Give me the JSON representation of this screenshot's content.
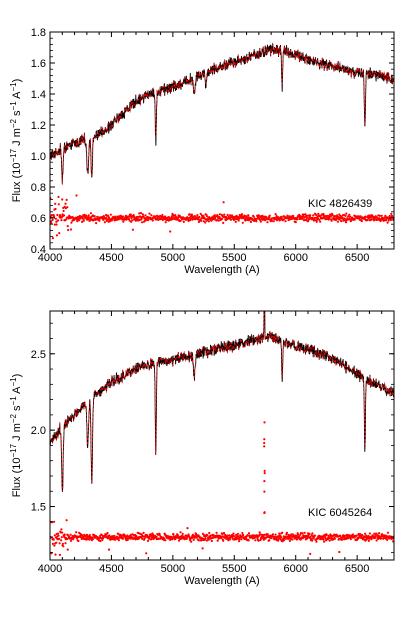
{
  "colors": {
    "model": "#000000",
    "residual": "#ff0000",
    "frame": "#000000"
  },
  "chart_data": [
    {
      "type": "line",
      "annotation": "KIC 4826439",
      "xlabel": "Wavelength (A)",
      "ylabel_parts": {
        "base": "Flux (10",
        "e1": "−17",
        "mid1": " J m",
        "e2": "−2",
        "mid2": " s",
        "e3": "−1",
        "mid3": " A",
        "e4": "−1",
        "end": ")"
      },
      "xlim": [
        4000,
        6800
      ],
      "ylim": [
        0.4,
        1.8
      ],
      "xticks": [
        4000,
        4500,
        5000,
        5500,
        6000,
        6500
      ],
      "yticks": [
        0.4,
        0.6,
        0.8,
        1.0,
        1.2,
        1.4,
        1.6,
        1.8
      ],
      "ytick_labels": [
        "0.4",
        "0.6",
        "0.8",
        "1.0",
        "1.2",
        "1.4",
        "1.6",
        "1.8"
      ],
      "continuum": {
        "x": [
          4000,
          4100,
          4200,
          4300,
          4400,
          4500,
          4600,
          4700,
          4800,
          4900,
          5000,
          5100,
          5200,
          5300,
          5400,
          5500,
          5600,
          5700,
          5800,
          5900,
          6000,
          6100,
          6200,
          6300,
          6400,
          6500,
          6600,
          6700,
          6800
        ],
        "y": [
          1.0,
          1.05,
          1.08,
          1.11,
          1.14,
          1.2,
          1.28,
          1.35,
          1.4,
          1.42,
          1.45,
          1.48,
          1.52,
          1.55,
          1.58,
          1.61,
          1.63,
          1.66,
          1.69,
          1.68,
          1.65,
          1.62,
          1.6,
          1.58,
          1.56,
          1.54,
          1.53,
          1.51,
          1.49
        ]
      },
      "absorption_lines": [
        {
          "wavelength": 4101,
          "depth": 0.2,
          "width": 8
        },
        {
          "wavelength": 4307,
          "depth": 0.22,
          "width": 10
        },
        {
          "wavelength": 4340,
          "depth": 0.25,
          "width": 8
        },
        {
          "wavelength": 4861,
          "depth": 0.33,
          "width": 6
        },
        {
          "wavelength": 5175,
          "depth": 0.1,
          "width": 10
        },
        {
          "wavelength": 5270,
          "depth": 0.08,
          "width": 8
        },
        {
          "wavelength": 5890,
          "depth": 0.24,
          "width": 6
        },
        {
          "wavelength": 6563,
          "depth": 0.36,
          "width": 6
        }
      ],
      "residual": {
        "level": 0.6,
        "scatter": 0.018,
        "outlier_range": [
          0.45,
          0.75
        ]
      }
    },
    {
      "type": "line",
      "annotation": "KIC 6045264",
      "xlabel": "Wavelength (A)",
      "ylabel_parts": {
        "base": "Flux (10",
        "e1": "−17",
        "mid1": " J m",
        "e2": "−2",
        "mid2": " s",
        "e3": "−1",
        "mid3": " A",
        "e4": "−1",
        "end": ")"
      },
      "xlim": [
        4000,
        6800
      ],
      "ylim": [
        1.15,
        2.78
      ],
      "xticks": [
        4000,
        4500,
        5000,
        5500,
        6000,
        6500
      ],
      "yticks": [
        1.5,
        2.0,
        2.5
      ],
      "ytick_labels": [
        "1.5",
        "2.0",
        "2.5"
      ],
      "continuum": {
        "x": [
          4000,
          4100,
          4200,
          4300,
          4400,
          4500,
          4600,
          4700,
          4800,
          4900,
          5000,
          5100,
          5200,
          5300,
          5400,
          5500,
          5600,
          5700,
          5800,
          5900,
          6000,
          6100,
          6200,
          6300,
          6400,
          6500,
          6600,
          6700,
          6800
        ],
        "y": [
          1.92,
          2.02,
          2.1,
          2.18,
          2.25,
          2.32,
          2.36,
          2.4,
          2.43,
          2.45,
          2.46,
          2.48,
          2.5,
          2.52,
          2.54,
          2.56,
          2.58,
          2.6,
          2.62,
          2.58,
          2.55,
          2.53,
          2.5,
          2.46,
          2.42,
          2.37,
          2.32,
          2.28,
          2.24
        ]
      },
      "absorption_lines": [
        {
          "wavelength": 4101,
          "depth": 0.42,
          "width": 8
        },
        {
          "wavelength": 4307,
          "depth": 0.3,
          "width": 10
        },
        {
          "wavelength": 4340,
          "depth": 0.55,
          "width": 8
        },
        {
          "wavelength": 4861,
          "depth": 0.6,
          "width": 6
        },
        {
          "wavelength": 5175,
          "depth": 0.15,
          "width": 10
        },
        {
          "wavelength": 5890,
          "depth": 0.25,
          "width": 6
        },
        {
          "wavelength": 6563,
          "depth": 0.48,
          "width": 6
        }
      ],
      "spike": {
        "wavelength": 5745,
        "height": 0.45
      },
      "residual": {
        "level": 1.3,
        "scatter": 0.018,
        "outlier_range": [
          1.18,
          1.42
        ]
      }
    }
  ]
}
